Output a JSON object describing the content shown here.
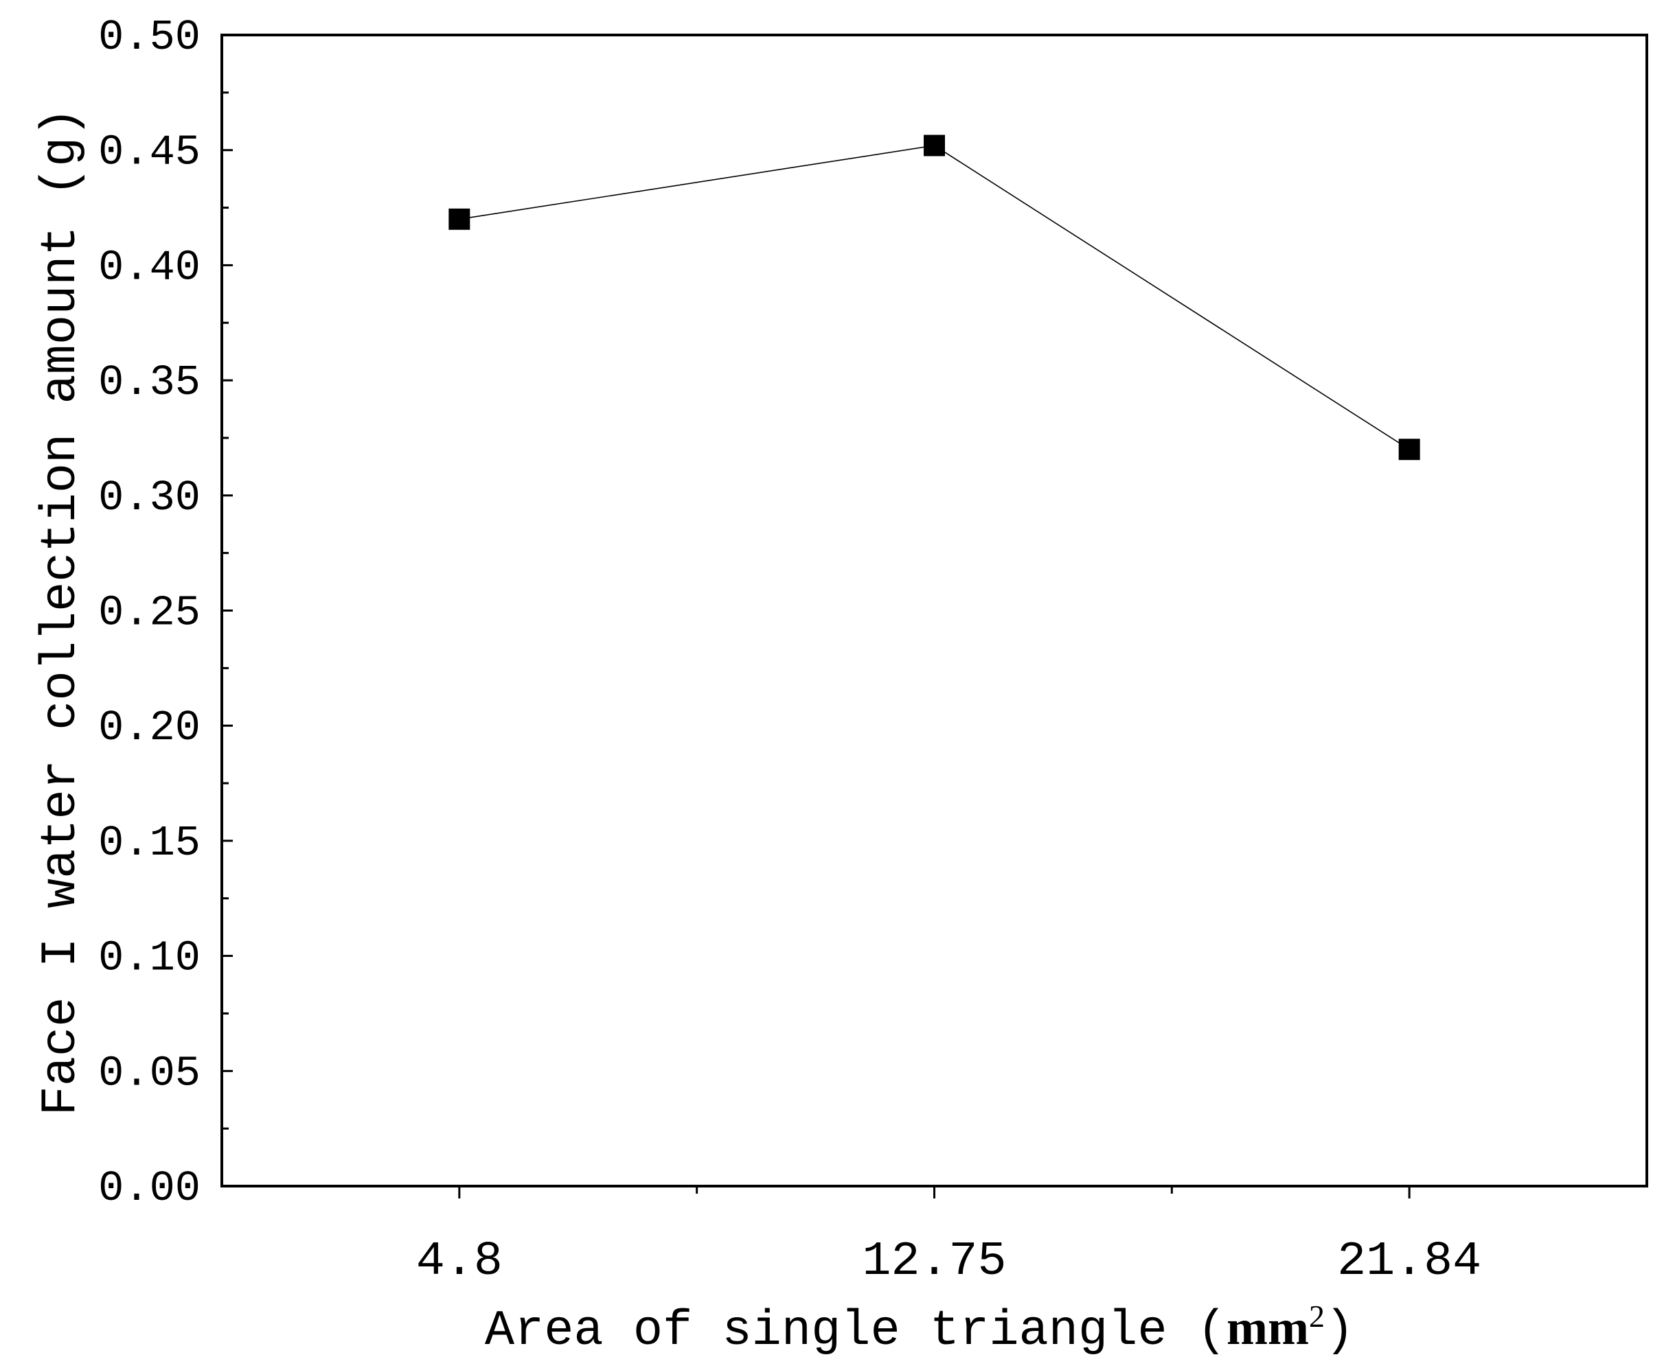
{
  "chart_data": {
    "type": "line",
    "categories": [
      "4.8",
      "12.75",
      "21.84"
    ],
    "series": [
      {
        "name": "Face I water collection amount",
        "values": [
          0.42,
          0.452,
          0.32
        ],
        "marker": "square",
        "color": "#000000"
      }
    ],
    "ylabel": "Face I water collection amount (g)",
    "xlabel": {
      "prefix": "Area of single triangle (",
      "unit": "mm",
      "superscript": "2",
      "suffix": ")"
    },
    "ylim": [
      0,
      0.5
    ],
    "yticks": [
      "0.00",
      "0.05",
      "0.10",
      "0.15",
      "0.20",
      "0.25",
      "0.30",
      "0.35",
      "0.40",
      "0.45",
      "0.50"
    ],
    "grid": false,
    "legend": "none"
  },
  "colors": {
    "background": "#ffffff",
    "axis": "#000000",
    "line": "#000000"
  }
}
